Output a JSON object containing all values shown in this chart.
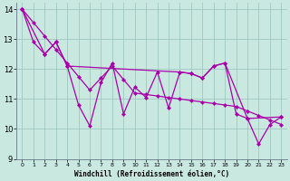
{
  "xlabel": "Windchill (Refroidissement éolien,°C)",
  "background_color": "#c8e8e0",
  "grid_color": "#a0c8c0",
  "line_color": "#aa00aa",
  "xlim": [
    -0.5,
    23.5
  ],
  "ylim": [
    9,
    14.2
  ],
  "yticks": [
    9,
    10,
    11,
    12,
    13,
    14
  ],
  "xticks": [
    0,
    1,
    2,
    3,
    4,
    5,
    6,
    7,
    8,
    9,
    10,
    11,
    12,
    13,
    14,
    15,
    16,
    17,
    18,
    19,
    20,
    21,
    22,
    23
  ],
  "series1_x": [
    0,
    1,
    2,
    3,
    4,
    5,
    6,
    7,
    8,
    9,
    10,
    11,
    12,
    13,
    14,
    15,
    16,
    17,
    18,
    19,
    20,
    21,
    22,
    23
  ],
  "series1_y": [
    14.0,
    12.9,
    12.5,
    12.9,
    12.1,
    10.8,
    10.1,
    11.55,
    12.2,
    10.5,
    11.4,
    11.05,
    11.9,
    10.7,
    11.9,
    11.85,
    11.7,
    12.1,
    12.2,
    10.5,
    10.35,
    9.5,
    10.15,
    10.4
  ],
  "series2_x": [
    0,
    2,
    3,
    4,
    14,
    15,
    16,
    17,
    18,
    20,
    23
  ],
  "series2_y": [
    14.0,
    12.5,
    12.9,
    12.1,
    11.9,
    11.85,
    11.7,
    12.1,
    12.2,
    10.35,
    10.4
  ],
  "series3_x": [
    0,
    1,
    2,
    3,
    4,
    5,
    6,
    7,
    8,
    9,
    10,
    11,
    12,
    13,
    14,
    15,
    16,
    17,
    18,
    19,
    20,
    21,
    22,
    23
  ],
  "series3_y": [
    14.0,
    13.55,
    13.1,
    12.65,
    12.2,
    11.75,
    11.3,
    11.7,
    12.1,
    11.65,
    11.2,
    11.15,
    11.1,
    11.05,
    11.0,
    10.95,
    10.9,
    10.85,
    10.8,
    10.75,
    10.6,
    10.45,
    10.3,
    10.15
  ]
}
